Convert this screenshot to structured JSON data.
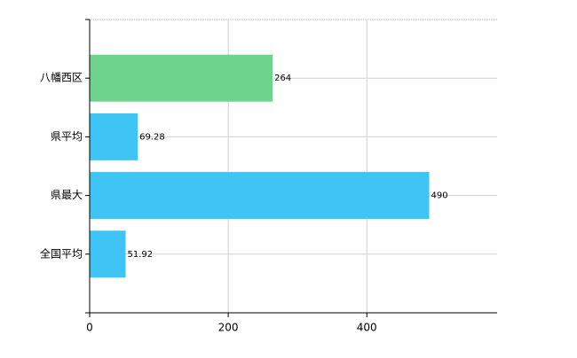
{
  "chart_data": {
    "type": "barh",
    "categories": [
      "八幡西区",
      "県平均",
      "県最大",
      "全国平均"
    ],
    "values": [
      264,
      69.28,
      490,
      51.92
    ],
    "colors": [
      "#6dd38d",
      "#3ec4f5",
      "#3ec4f5",
      "#3ec4f5"
    ],
    "xlim": [
      0,
      588
    ],
    "xticks": [
      0,
      200,
      400
    ],
    "grid": true
  }
}
